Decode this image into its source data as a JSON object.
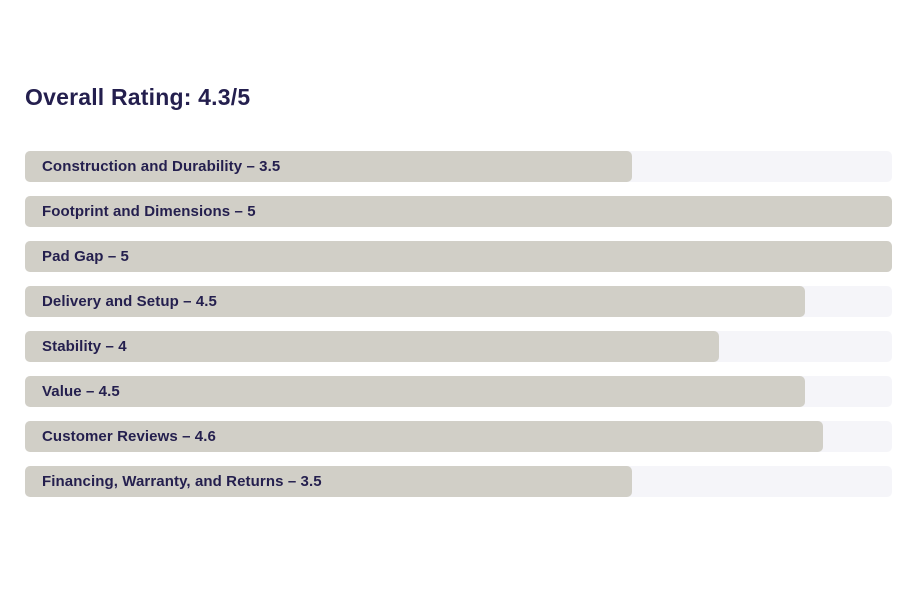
{
  "header": {
    "title": "Overall Rating: 4.3/5"
  },
  "colors": {
    "bar_fill": "#d1cfc7",
    "bar_track": "#f5f5f9",
    "text": "#241f4e",
    "background": "#ffffff"
  },
  "chart_data": {
    "type": "bar",
    "orientation": "horizontal",
    "title": "Overall Rating: 4.3/5",
    "value_range": [
      0,
      5
    ],
    "grid": false,
    "legend": false,
    "categories": [
      "Construction and Durability",
      "Footprint and Dimensions",
      "Pad Gap",
      "Delivery and Setup",
      "Stability",
      "Value",
      "Customer Reviews",
      "Financing, Warranty, and Returns"
    ],
    "values": [
      3.5,
      5,
      5,
      4.5,
      4,
      4.5,
      4.6,
      3.5
    ],
    "bar_labels": [
      "Construction and Durability – 3.5",
      "Footprint and Dimensions – 5",
      "Pad Gap – 5",
      "Delivery and Setup – 4.5",
      "Stability – 4",
      "Value – 4.5",
      "Customer Reviews – 4.6",
      "Financing, Warranty, and Returns – 3.5"
    ]
  }
}
